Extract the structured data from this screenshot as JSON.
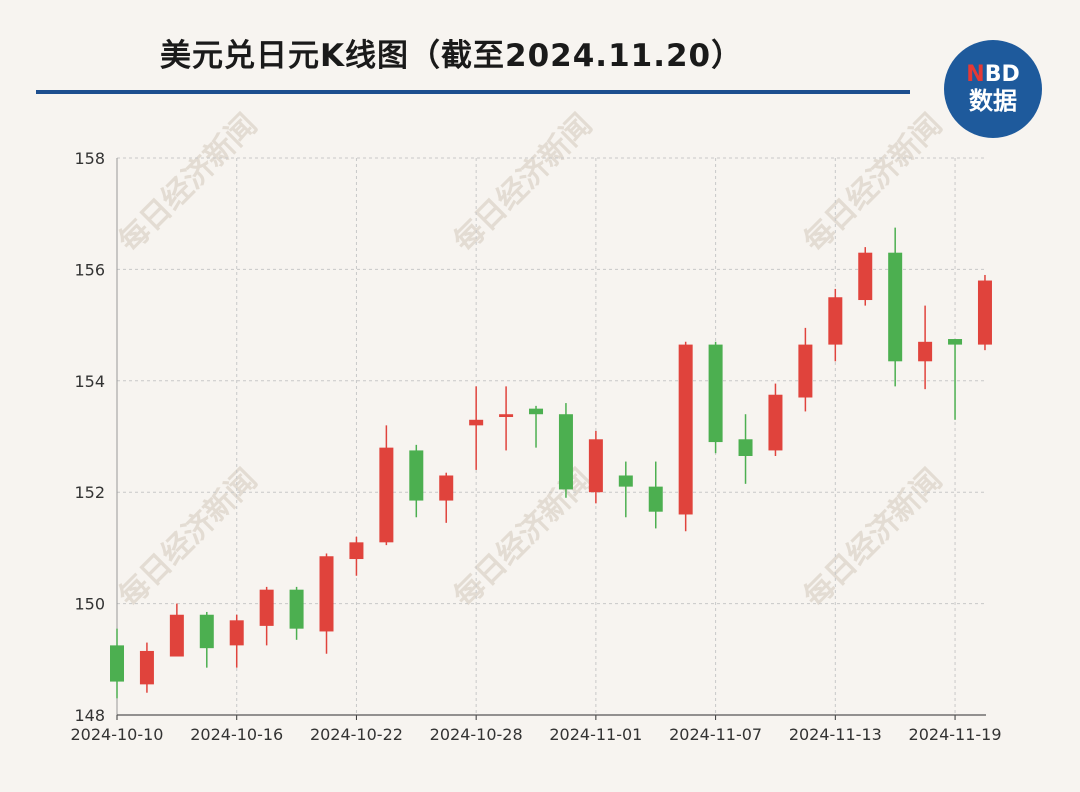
{
  "title": "美元兑日元K线图（截至2024.11.20）",
  "logo": {
    "line1_n": "N",
    "line1_rest": "BD",
    "line2": "数据"
  },
  "watermark": "每日经济新闻",
  "colors": {
    "up": "#e0433c",
    "down": "#4caf50",
    "grid": "#c8c8c8",
    "axis": "#333333",
    "title_rule": "#1d4f8f",
    "logo_bg": "#1e5a9c"
  },
  "chart_data": {
    "type": "candlestick",
    "title": "美元兑日元K线图（截至2024.11.20）",
    "ylim": [
      148,
      158
    ],
    "y_ticks": [
      148,
      150,
      152,
      154,
      156,
      158
    ],
    "x_tick_labels": [
      "2024-10-10",
      "2024-10-16",
      "2024-10-22",
      "2024-10-28",
      "2024-11-01",
      "2024-11-07",
      "2024-11-13",
      "2024-11-19"
    ],
    "x_tick_index": [
      0,
      4,
      8,
      12,
      16,
      20,
      24,
      28
    ],
    "grid": true,
    "candles": [
      {
        "date": "2024-10-10",
        "open": 149.25,
        "high": 149.55,
        "low": 148.3,
        "close": 148.6
      },
      {
        "date": "2024-10-11",
        "open": 148.55,
        "high": 149.3,
        "low": 148.4,
        "close": 149.15
      },
      {
        "date": "2024-10-14",
        "open": 149.05,
        "high": 150.0,
        "low": 149.05,
        "close": 149.8
      },
      {
        "date": "2024-10-15",
        "open": 149.8,
        "high": 149.85,
        "low": 148.85,
        "close": 149.2
      },
      {
        "date": "2024-10-16",
        "open": 149.25,
        "high": 149.8,
        "low": 148.85,
        "close": 149.7
      },
      {
        "date": "2024-10-17",
        "open": 149.6,
        "high": 150.3,
        "low": 149.25,
        "close": 150.25
      },
      {
        "date": "2024-10-18",
        "open": 150.25,
        "high": 150.3,
        "low": 149.35,
        "close": 149.55
      },
      {
        "date": "2024-10-21",
        "open": 149.5,
        "high": 150.9,
        "low": 149.1,
        "close": 150.85
      },
      {
        "date": "2024-10-22",
        "open": 150.8,
        "high": 151.2,
        "low": 150.5,
        "close": 151.1
      },
      {
        "date": "2024-10-23",
        "open": 151.1,
        "high": 153.2,
        "low": 151.05,
        "close": 152.8
      },
      {
        "date": "2024-10-24",
        "open": 152.75,
        "high": 152.85,
        "low": 151.55,
        "close": 151.85
      },
      {
        "date": "2024-10-25",
        "open": 151.85,
        "high": 152.35,
        "low": 151.45,
        "close": 152.3
      },
      {
        "date": "2024-10-28",
        "open": 153.2,
        "high": 153.9,
        "low": 152.4,
        "close": 153.3
      },
      {
        "date": "2024-10-29",
        "open": 153.35,
        "high": 153.9,
        "low": 152.75,
        "close": 153.4
      },
      {
        "date": "2024-10-30",
        "open": 153.5,
        "high": 153.55,
        "low": 152.8,
        "close": 153.4
      },
      {
        "date": "2024-10-31",
        "open": 153.4,
        "high": 153.6,
        "low": 151.9,
        "close": 152.05
      },
      {
        "date": "2024-11-01",
        "open": 152.0,
        "high": 153.1,
        "low": 151.8,
        "close": 152.95
      },
      {
        "date": "2024-11-04",
        "open": 152.3,
        "high": 152.55,
        "low": 151.55,
        "close": 152.1
      },
      {
        "date": "2024-11-05",
        "open": 152.1,
        "high": 152.55,
        "low": 151.35,
        "close": 151.65
      },
      {
        "date": "2024-11-06",
        "open": 151.6,
        "high": 154.7,
        "low": 151.3,
        "close": 154.65
      },
      {
        "date": "2024-11-07",
        "open": 154.65,
        "high": 154.7,
        "low": 152.7,
        "close": 152.9
      },
      {
        "date": "2024-11-08",
        "open": 152.95,
        "high": 153.4,
        "low": 152.15,
        "close": 152.65
      },
      {
        "date": "2024-11-11",
        "open": 152.75,
        "high": 153.95,
        "low": 152.65,
        "close": 153.75
      },
      {
        "date": "2024-11-12",
        "open": 153.7,
        "high": 154.95,
        "low": 153.45,
        "close": 154.65
      },
      {
        "date": "2024-11-13",
        "open": 154.65,
        "high": 155.65,
        "low": 154.35,
        "close": 155.5
      },
      {
        "date": "2024-11-14",
        "open": 155.45,
        "high": 156.4,
        "low": 155.35,
        "close": 156.3
      },
      {
        "date": "2024-11-15",
        "open": 156.3,
        "high": 156.75,
        "low": 153.9,
        "close": 154.35
      },
      {
        "date": "2024-11-18",
        "open": 154.35,
        "high": 155.35,
        "low": 153.85,
        "close": 154.7
      },
      {
        "date": "2024-11-19",
        "open": 154.75,
        "high": 154.75,
        "low": 153.3,
        "close": 154.65
      },
      {
        "date": "2024-11-20",
        "open": 154.65,
        "high": 155.9,
        "low": 154.55,
        "close": 155.8
      }
    ]
  }
}
